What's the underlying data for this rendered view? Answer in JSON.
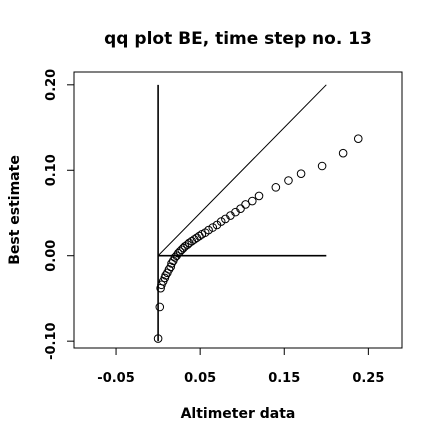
{
  "chart_data": {
    "type": "scatter",
    "title": "qq plot BE, time step no. 13",
    "xlabel": "Altimeter data",
    "ylabel": "Best estimate",
    "xlim": [
      -0.1,
      0.29
    ],
    "ylim": [
      -0.108,
      0.215
    ],
    "x_ticks": [
      -0.05,
      0.05,
      0.15,
      0.25
    ],
    "x_tick_labels": [
      "-0.05",
      "0.05",
      "0.15",
      "0.25"
    ],
    "y_ticks": [
      -0.1,
      0.0,
      0.1,
      0.2
    ],
    "y_tick_labels": [
      "-0.10",
      "0.00",
      "0.10",
      "0.20"
    ],
    "grid": false,
    "legend": "none",
    "marker": "open-circle",
    "reference_lines": [
      {
        "name": "identity",
        "x": [
          0.0,
          0.2
        ],
        "y": [
          0.0,
          0.2
        ]
      },
      {
        "name": "vertical",
        "x": [
          0.0,
          0.0
        ],
        "y": [
          -0.1,
          0.2
        ]
      },
      {
        "name": "horizontal",
        "x": [
          0.0,
          0.2
        ],
        "y": [
          0.0,
          0.0
        ]
      }
    ],
    "series": [
      {
        "x": [
          0.0,
          0.002,
          0.003,
          0.004,
          0.006,
          0.008,
          0.009,
          0.011,
          0.013,
          0.015,
          0.016,
          0.018,
          0.02,
          0.022,
          0.024,
          0.026,
          0.028,
          0.03,
          0.032,
          0.035,
          0.037,
          0.04,
          0.043,
          0.046,
          0.049,
          0.052,
          0.056,
          0.06,
          0.065,
          0.07,
          0.075,
          0.08,
          0.086,
          0.092,
          0.098,
          0.104,
          0.112,
          0.12,
          0.14,
          0.155,
          0.17,
          0.195,
          0.22,
          0.238
        ],
        "y": [
          -0.097,
          -0.06,
          -0.038,
          -0.034,
          -0.03,
          -0.026,
          -0.023,
          -0.02,
          -0.016,
          -0.013,
          -0.009,
          -0.006,
          -0.002,
          0.0,
          0.003,
          0.005,
          0.007,
          0.009,
          0.011,
          0.013,
          0.015,
          0.017,
          0.019,
          0.021,
          0.023,
          0.025,
          0.027,
          0.03,
          0.033,
          0.036,
          0.04,
          0.043,
          0.047,
          0.051,
          0.055,
          0.06,
          0.064,
          0.07,
          0.08,
          0.088,
          0.096,
          0.105,
          0.12,
          0.137
        ]
      }
    ]
  }
}
